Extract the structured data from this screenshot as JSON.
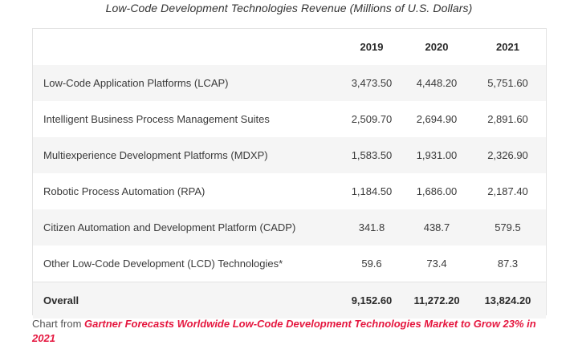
{
  "title": "Low-Code Development Technologies Revenue (Millions of U.S. Dollars)",
  "table": {
    "columns": [
      "",
      "2019",
      "2020",
      "2021"
    ],
    "rows": [
      {
        "name": "Low-Code Application Platforms (LCAP)",
        "y2019": "3,473.50",
        "y2020": "4,448.20",
        "y2021": "5,751.60"
      },
      {
        "name": "Intelligent Business Process Management Suites",
        "y2019": "2,509.70",
        "y2020": "2,694.90",
        "y2021": "2,891.60"
      },
      {
        "name": "Multiexperience Development Platforms (MDXP)",
        "y2019": "1,583.50",
        "y2020": "1,931.00",
        "y2021": "2,326.90"
      },
      {
        "name": "Robotic Process Automation (RPA)",
        "y2019": "1,184.50",
        "y2020": "1,686.00",
        "y2021": "2,187.40"
      },
      {
        "name": "Citizen Automation and Development Platform (CADP)",
        "y2019": "341.8",
        "y2020": "438.7",
        "y2021": "579.5"
      },
      {
        "name": "Other Low-Code Development (LCD) Technologies*",
        "y2019": "59.6",
        "y2020": "73.4",
        "y2021": "87.3"
      }
    ],
    "total": {
      "name": "Overall",
      "y2019": "9,152.60",
      "y2020": "11,272.20",
      "y2021": "13,824.20"
    }
  },
  "caption": {
    "prefix": "Chart from ",
    "link_text": "Gartner Forecasts Worldwide Low-Code Development Technologies Market to Grow 23% in 2021"
  },
  "colors": {
    "link": "#e5173f",
    "stripe": "#f5f5f5"
  }
}
